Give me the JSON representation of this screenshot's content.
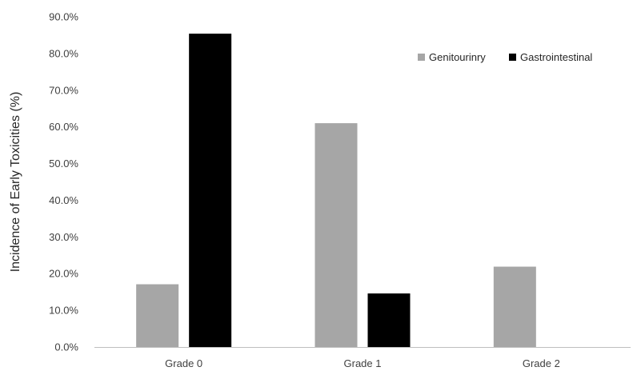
{
  "chart_data": {
    "type": "bar",
    "title": "",
    "xlabel": "",
    "ylabel": "Incidence of Early Toxicities (%)",
    "categories": [
      "Grade 0",
      "Grade 1",
      "Grade 2"
    ],
    "series": [
      {
        "name": "Genitourinry",
        "color": "#a6a6a6",
        "values": [
          17.1,
          61.0,
          21.9
        ]
      },
      {
        "name": "Gastrointestinal",
        "color": "#000000",
        "values": [
          85.4,
          14.6,
          0
        ]
      }
    ],
    "ylim": [
      0,
      90
    ],
    "yticks": [
      "0.0%",
      "10.0%",
      "20.0%",
      "30.0%",
      "40.0%",
      "50.0%",
      "60.0%",
      "70.0%",
      "80.0%",
      "90.0%"
    ],
    "grid": false,
    "legend_position": "top-right"
  }
}
